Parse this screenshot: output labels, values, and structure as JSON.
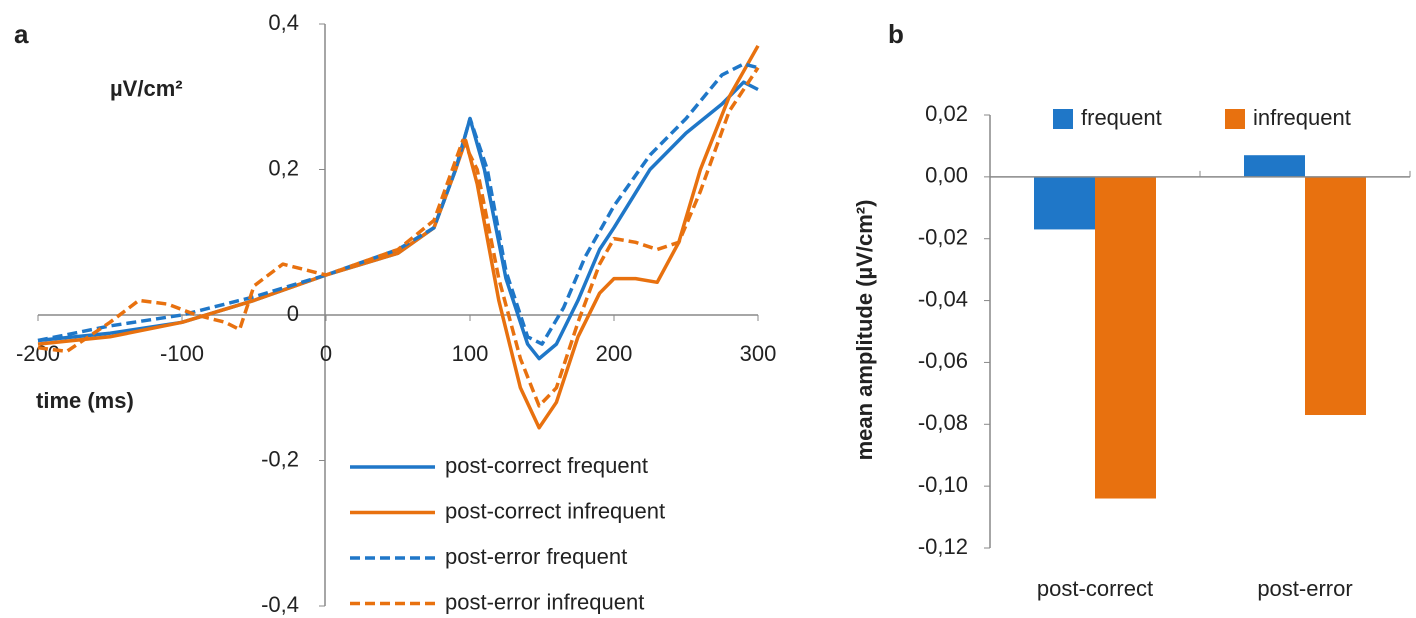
{
  "chart_data": [
    {
      "type": "line",
      "panel_label": "a",
      "y_label": "µV/cm²",
      "x_label": "time (ms)",
      "xlim": [
        -200,
        300
      ],
      "xticks": [
        -200,
        -100,
        0,
        100,
        200,
        300
      ],
      "ylim": [
        -0.4,
        0.4
      ],
      "yticks": [
        {
          "value": 0.4,
          "label": "0,4"
        },
        {
          "value": 0.2,
          "label": "0,2"
        },
        0,
        {
          "value": -0.2,
          "label": "-0,2"
        },
        {
          "value": -0.4,
          "label": "-0,4"
        }
      ],
      "legend": "lower right",
      "series": [
        {
          "name": "post-correct frequent",
          "color": "#1f77c8",
          "linestyle": "solid",
          "x": [
            -200,
            -150,
            -100,
            -50,
            0,
            50,
            75,
            90,
            100,
            110,
            125,
            140,
            148,
            160,
            175,
            190,
            200,
            225,
            250,
            275,
            290,
            300
          ],
          "values": [
            -0.035,
            -0.025,
            -0.01,
            0.02,
            0.055,
            0.085,
            0.12,
            0.2,
            0.27,
            0.2,
            0.05,
            -0.04,
            -0.06,
            -0.04,
            0.02,
            0.09,
            0.12,
            0.2,
            0.25,
            0.29,
            0.32,
            0.31
          ]
        },
        {
          "name": "post-correct infrequent",
          "color": "#e8710f",
          "linestyle": "solid",
          "x": [
            -200,
            -150,
            -100,
            -50,
            0,
            50,
            75,
            90,
            97,
            105,
            120,
            135,
            148,
            160,
            175,
            190,
            200,
            215,
            230,
            245,
            260,
            280,
            300
          ],
          "values": [
            -0.04,
            -0.03,
            -0.01,
            0.02,
            0.055,
            0.085,
            0.12,
            0.2,
            0.24,
            0.18,
            0.02,
            -0.1,
            -0.155,
            -0.12,
            -0.03,
            0.03,
            0.05,
            0.05,
            0.045,
            0.1,
            0.2,
            0.3,
            0.37
          ]
        },
        {
          "name": "post-error frequent",
          "color": "#1f77c8",
          "linestyle": "dashed",
          "x": [
            -200,
            -150,
            -100,
            -50,
            0,
            50,
            75,
            90,
            100,
            112,
            125,
            140,
            150,
            165,
            180,
            200,
            225,
            250,
            275,
            290,
            300
          ],
          "values": [
            -0.035,
            -0.015,
            0,
            0.025,
            0.055,
            0.09,
            0.12,
            0.2,
            0.27,
            0.2,
            0.06,
            -0.03,
            -0.04,
            0.01,
            0.08,
            0.15,
            0.22,
            0.27,
            0.33,
            0.345,
            0.34
          ]
        },
        {
          "name": "post-error infrequent",
          "color": "#e8710f",
          "linestyle": "dashed",
          "x": [
            -200,
            -180,
            -150,
            -130,
            -110,
            -90,
            -70,
            -60,
            -50,
            -30,
            -10,
            0,
            50,
            75,
            95,
            105,
            120,
            135,
            148,
            160,
            175,
            190,
            200,
            215,
            230,
            245,
            260,
            280,
            300
          ],
          "values": [
            -0.045,
            -0.05,
            -0.01,
            0.02,
            0.015,
            0,
            -0.01,
            -0.02,
            0.04,
            0.07,
            0.06,
            0.055,
            0.09,
            0.13,
            0.24,
            0.2,
            0.05,
            -0.06,
            -0.125,
            -0.1,
            -0.01,
            0.07,
            0.105,
            0.1,
            0.09,
            0.1,
            0.17,
            0.28,
            0.34
          ]
        }
      ]
    },
    {
      "type": "bar",
      "panel_label": "b",
      "y_label": "mean amplitude (µV/cm²)",
      "categories": [
        "post-correct",
        "post-error"
      ],
      "ylim": [
        -0.12,
        0.02
      ],
      "yticks": [
        {
          "value": 0.02,
          "label": "0,02"
        },
        {
          "value": 0,
          "label": "0,00"
        },
        {
          "value": -0.02,
          "label": "-0,02"
        },
        {
          "value": -0.04,
          "label": "-0,04"
        },
        {
          "value": -0.06,
          "label": "-0,06"
        },
        {
          "value": -0.08,
          "label": "-0,08"
        },
        {
          "value": -0.1,
          "label": "-0,10"
        },
        {
          "value": -0.12,
          "label": "-0,12"
        }
      ],
      "legend": "top",
      "series": [
        {
          "name": "frequent",
          "color": "#1f77c8",
          "values": [
            -0.017,
            0.007
          ]
        },
        {
          "name": "infrequent",
          "color": "#e8710f",
          "values": [
            -0.104,
            -0.077
          ]
        }
      ]
    }
  ]
}
